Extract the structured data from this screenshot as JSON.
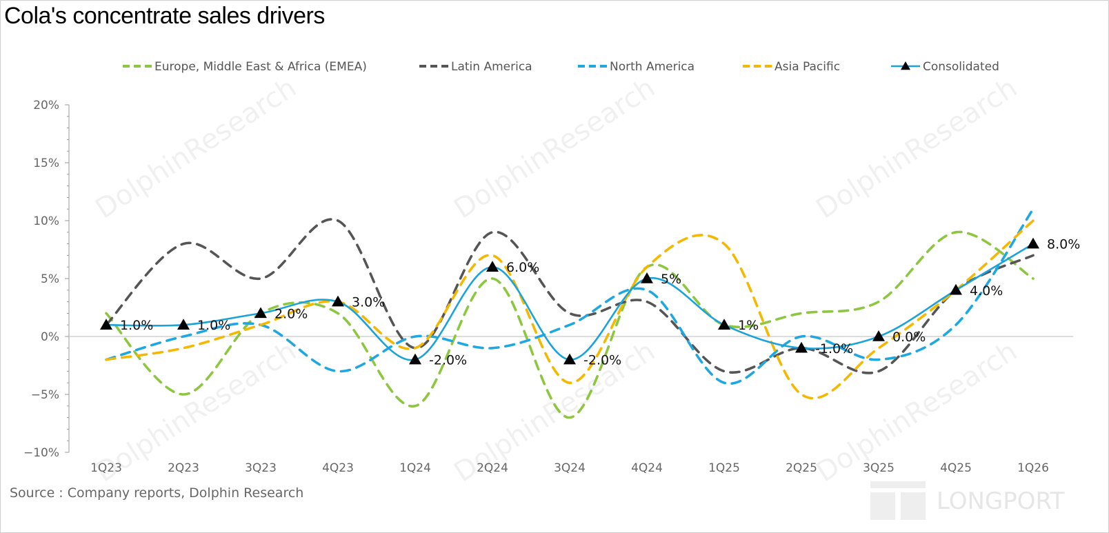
{
  "title": "Cola's concentrate sales  drivers",
  "source": "Source : Company reports, Dolphin Research",
  "watermark": "DolphinResearch",
  "brand": "LONGPORT",
  "chart_data": {
    "type": "line",
    "categories": [
      "1Q23",
      "2Q23",
      "3Q23",
      "4Q23",
      "1Q24",
      "2Q24",
      "3Q24",
      "4Q24",
      "1Q25",
      "2Q25",
      "3Q25",
      "4Q25",
      "1Q26"
    ],
    "ylim": [
      -10,
      20
    ],
    "yticks": [
      -10,
      -5,
      0,
      5,
      10,
      15,
      20
    ],
    "ytick_labels": [
      "−10%",
      "−5%",
      "0%",
      "5%",
      "10%",
      "15%",
      "20%"
    ],
    "legend_position": "top",
    "series": [
      {
        "name": "Europe, Middle East & Africa (EMEA)",
        "color": "#8dc63f",
        "style": "dashed",
        "values": [
          2,
          -5,
          2,
          2,
          -6,
          5,
          -7,
          6,
          1,
          2,
          3,
          9,
          5
        ]
      },
      {
        "name": "Latin America",
        "color": "#555555",
        "style": "dashed",
        "values": [
          1,
          8,
          5,
          10,
          -1,
          9,
          2,
          3,
          -3,
          -1,
          -3,
          4,
          7
        ]
      },
      {
        "name": "North America",
        "color": "#1ea7e1",
        "style": "dashed",
        "values": [
          -2,
          0,
          1,
          -3,
          0,
          -1,
          1,
          4,
          -4,
          0,
          -2,
          1,
          11
        ]
      },
      {
        "name": "Asia Pacific",
        "color": "#f5b800",
        "style": "dashed",
        "values": [
          -2,
          -1,
          1,
          3,
          -1,
          7,
          -4,
          6,
          8,
          -5,
          -1,
          4,
          10
        ]
      },
      {
        "name": "Consolidated",
        "color": "#1aa3db",
        "style": "solid",
        "marker": "triangle",
        "values": [
          1,
          1,
          2,
          3,
          -2,
          6,
          -2,
          5,
          1,
          -1,
          0,
          4,
          8
        ],
        "data_labels": [
          "1.0%",
          "1.0%",
          "2.0%",
          "3.0%",
          "-2.0%",
          "6.0%",
          "-2.0%",
          "5%",
          "1%",
          "-1.0%",
          "0.0%",
          "4.0%",
          "8.0%"
        ]
      }
    ]
  }
}
